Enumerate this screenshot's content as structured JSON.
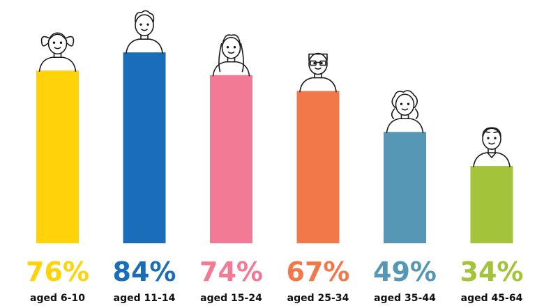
{
  "chart_data": {
    "type": "bar",
    "categories": [
      "aged 6-10",
      "aged 11-14",
      "aged 15-24",
      "aged 25-34",
      "aged 35-44",
      "aged 45-64"
    ],
    "values": [
      76,
      84,
      74,
      67,
      49,
      34
    ],
    "value_labels": [
      "76%",
      "84%",
      "74%",
      "67%",
      "49%",
      "34%"
    ],
    "colors": [
      "#FFD20A",
      "#1A6DB8",
      "#F27A95",
      "#F2784A",
      "#5597B5",
      "#A3C43A"
    ],
    "icons": [
      "girl-pigtails-icon",
      "boy-icon",
      "young-woman-icon",
      "man-glasses-icon",
      "woman-curly-hair-icon",
      "older-man-icon"
    ],
    "ylim": [
      0,
      100
    ],
    "grid": false,
    "legend": "none"
  }
}
